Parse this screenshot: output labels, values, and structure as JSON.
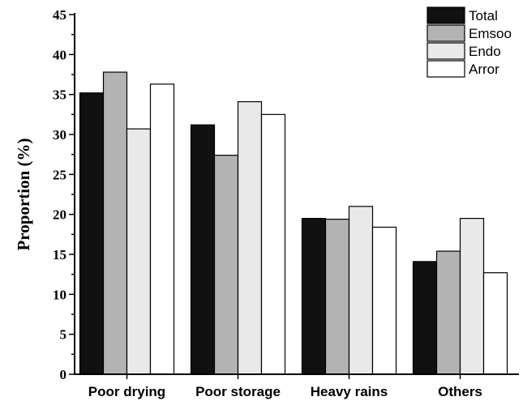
{
  "chart_data": {
    "type": "bar",
    "categories": [
      "Poor drying",
      "Poor storage",
      "Heavy rains",
      "Others"
    ],
    "series": [
      {
        "name": "Total",
        "color": "#111111",
        "values": [
          35.2,
          31.2,
          19.5,
          14.1
        ]
      },
      {
        "name": "Emsoo",
        "color": "#b3b3b3",
        "values": [
          37.8,
          27.4,
          19.4,
          15.4
        ]
      },
      {
        "name": "Endo",
        "color": "#e9e9e9",
        "values": [
          30.7,
          34.1,
          21.0,
          19.5
        ]
      },
      {
        "name": "Arror",
        "color": "#ffffff",
        "values": [
          36.3,
          32.5,
          18.4,
          12.7
        ]
      }
    ],
    "title": "",
    "xlabel": "",
    "ylabel": "Proportion (%)",
    "ylim": [
      0,
      45
    ],
    "yticks": [
      0,
      5,
      10,
      15,
      20,
      25,
      30,
      35,
      40,
      45
    ],
    "grid": false,
    "legend": "top-right"
  }
}
